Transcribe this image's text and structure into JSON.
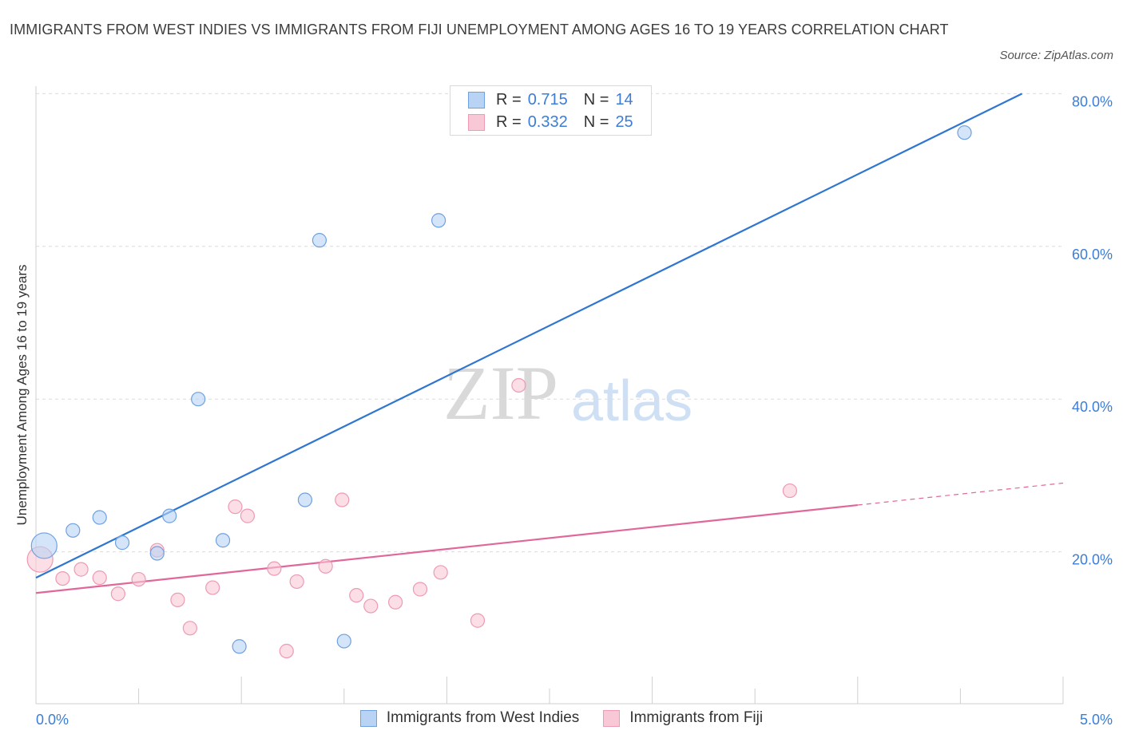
{
  "header": {
    "title": "IMMIGRANTS FROM WEST INDIES VS IMMIGRANTS FROM FIJI UNEMPLOYMENT AMONG AGES 16 TO 19 YEARS CORRELATION CHART",
    "source": "Source: ZipAtlas.com"
  },
  "legend": {
    "rows": [
      {
        "r_label": "R =",
        "r_value": "0.715",
        "n_label": "N =",
        "n_value": "14"
      },
      {
        "r_label": "R =",
        "r_value": "0.332",
        "n_label": "N =",
        "n_value": "25"
      }
    ]
  },
  "colors": {
    "blue_fill": "#b9d3f5",
    "blue_stroke": "#6fa0e0",
    "blue_line": "#2f76d0",
    "pink_fill": "#f9c8d6",
    "pink_stroke": "#ee9ab2",
    "pink_line": "#e0679a",
    "tick_text": "#3b7dd8"
  },
  "chart_data": {
    "type": "scatter",
    "title": "IMMIGRANTS FROM WEST INDIES VS IMMIGRANTS FROM FIJI UNEMPLOYMENT AMONG AGES 16 TO 19 YEARS CORRELATION CHART",
    "xlabel": "",
    "ylabel": "Unemployment Among Ages 16 to 19 years",
    "xlim": [
      0,
      5
    ],
    "ylim": [
      0,
      80
    ],
    "x_ticks": [
      {
        "value": 0,
        "label": "0.0%"
      },
      {
        "value": 5,
        "label": "5.0%"
      }
    ],
    "y_ticks": [
      {
        "value": 20,
        "label": "20.0%"
      },
      {
        "value": 40,
        "label": "40.0%"
      },
      {
        "value": 60,
        "label": "60.0%"
      },
      {
        "value": 80,
        "label": "80.0%"
      }
    ],
    "grid": true,
    "legend_position": "bottom",
    "series": [
      {
        "name": "Immigrants from West Indies",
        "color": "blue",
        "r": 0.715,
        "n": 14,
        "points": [
          {
            "x": 0.04,
            "y": 20.8,
            "big": true
          },
          {
            "x": 0.18,
            "y": 22.8
          },
          {
            "x": 0.31,
            "y": 24.5
          },
          {
            "x": 0.42,
            "y": 21.2
          },
          {
            "x": 0.59,
            "y": 19.8
          },
          {
            "x": 0.65,
            "y": 24.7
          },
          {
            "x": 0.79,
            "y": 40.0
          },
          {
            "x": 0.91,
            "y": 21.5
          },
          {
            "x": 0.99,
            "y": 7.6
          },
          {
            "x": 1.31,
            "y": 26.8
          },
          {
            "x": 1.38,
            "y": 60.8
          },
          {
            "x": 1.5,
            "y": 8.3
          },
          {
            "x": 1.96,
            "y": 63.4
          },
          {
            "x": 4.52,
            "y": 74.9
          }
        ],
        "trend": {
          "x1": 0.0,
          "y1": 16.6,
          "x2": 4.8,
          "y2": 80.0,
          "dash_from": null
        }
      },
      {
        "name": "Immigrants from Fiji",
        "color": "pink",
        "r": 0.332,
        "n": 25,
        "points": [
          {
            "x": 0.02,
            "y": 19.0,
            "big": true
          },
          {
            "x": 0.13,
            "y": 16.5
          },
          {
            "x": 0.22,
            "y": 17.7
          },
          {
            "x": 0.31,
            "y": 16.6
          },
          {
            "x": 0.4,
            "y": 14.5
          },
          {
            "x": 0.5,
            "y": 16.4
          },
          {
            "x": 0.59,
            "y": 20.2
          },
          {
            "x": 0.69,
            "y": 13.7
          },
          {
            "x": 0.75,
            "y": 10.0
          },
          {
            "x": 0.86,
            "y": 15.3
          },
          {
            "x": 0.97,
            "y": 25.9
          },
          {
            "x": 1.03,
            "y": 24.7
          },
          {
            "x": 1.16,
            "y": 17.8
          },
          {
            "x": 1.27,
            "y": 16.1
          },
          {
            "x": 1.22,
            "y": 7.0
          },
          {
            "x": 1.41,
            "y": 18.1
          },
          {
            "x": 1.49,
            "y": 26.8
          },
          {
            "x": 1.56,
            "y": 14.3
          },
          {
            "x": 1.63,
            "y": 12.9
          },
          {
            "x": 1.75,
            "y": 13.4
          },
          {
            "x": 1.87,
            "y": 15.1
          },
          {
            "x": 1.97,
            "y": 17.3
          },
          {
            "x": 2.15,
            "y": 11.0
          },
          {
            "x": 2.35,
            "y": 41.8
          },
          {
            "x": 3.67,
            "y": 28.0
          }
        ],
        "trend": {
          "x1": 0.0,
          "y1": 14.6,
          "x2": 5.0,
          "y2": 29.0,
          "dash_from": 4.0
        }
      }
    ]
  }
}
